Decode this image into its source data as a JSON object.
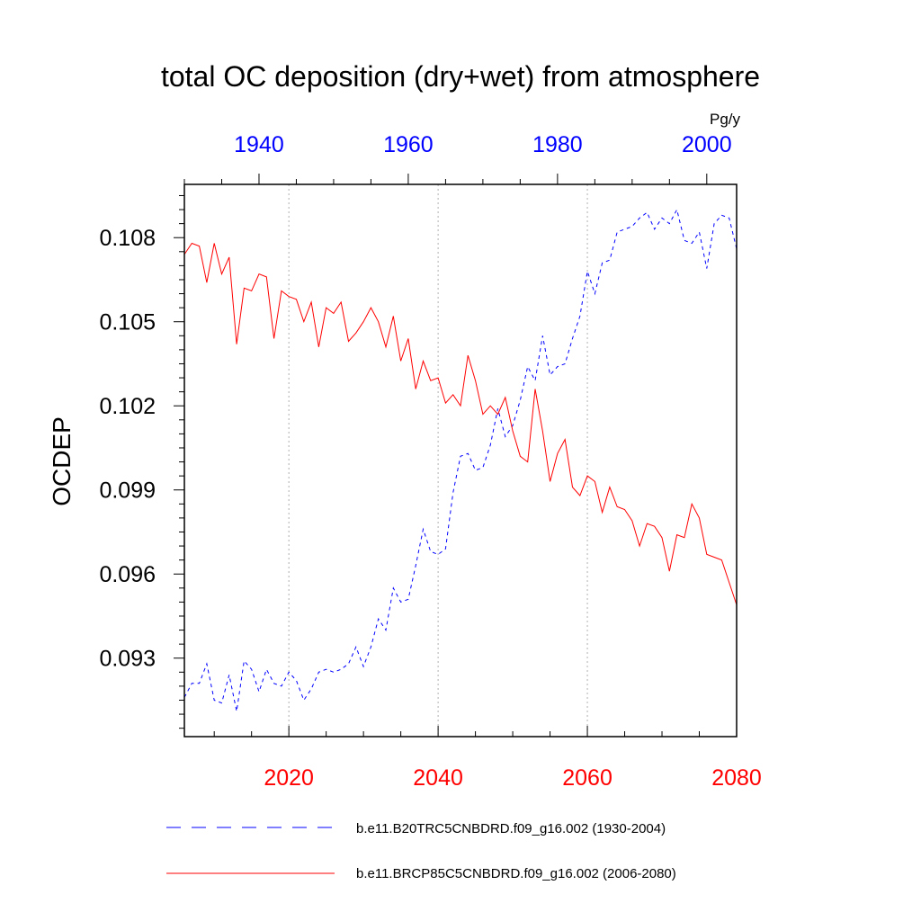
{
  "chart_data": {
    "type": "line",
    "title": "total OC deposition (dry+wet) from atmosphere",
    "ylabel": "OCDEP",
    "units": "Pg/y",
    "ylim": [
      0.0902,
      0.1099
    ],
    "yticks": [
      0.093,
      0.096,
      0.099,
      0.102,
      0.105,
      0.108
    ],
    "ytick_labels": [
      "0.093",
      "0.096",
      "0.099",
      "0.102",
      "0.105",
      "0.108"
    ],
    "x_bottom": {
      "range": [
        2006,
        2080
      ],
      "ticks": [
        2020,
        2040,
        2060,
        2080
      ],
      "tick_labels": [
        "2020",
        "2040",
        "2060",
        "2080"
      ],
      "color": "#ff0000"
    },
    "x_top": {
      "range": [
        1930,
        2004
      ],
      "ticks": [
        1940,
        1960,
        1980,
        2000
      ],
      "tick_labels": [
        "1940",
        "1960",
        "1980",
        "2000"
      ],
      "color": "#0000ff"
    },
    "gridlines_x": [
      2020,
      2040,
      2060
    ],
    "series": [
      {
        "name": "b.e11.B20TRC5CNBDRD.f09_g16.002 (1930-2004)",
        "axis": "top",
        "color": "#0000ff",
        "dash": "dashed",
        "x_start": 1930,
        "values": [
          0.0916,
          0.0921,
          0.0921,
          0.0928,
          0.0915,
          0.0914,
          0.0924,
          0.0911,
          0.0929,
          0.0926,
          0.0918,
          0.0926,
          0.0921,
          0.092,
          0.0925,
          0.0922,
          0.0915,
          0.0919,
          0.0925,
          0.0926,
          0.0925,
          0.0926,
          0.0928,
          0.0934,
          0.0927,
          0.0934,
          0.0944,
          0.094,
          0.0955,
          0.095,
          0.0951,
          0.0963,
          0.0976,
          0.0968,
          0.0967,
          0.0969,
          0.0989,
          0.1002,
          0.1003,
          0.0997,
          0.0998,
          0.1006,
          0.1019,
          0.1009,
          0.1013,
          0.1022,
          0.1034,
          0.1029,
          0.1045,
          0.1031,
          0.1034,
          0.1035,
          0.1044,
          0.1052,
          0.1068,
          0.106,
          0.1071,
          0.1072,
          0.1082,
          0.1083,
          0.1084,
          0.1087,
          0.1089,
          0.1083,
          0.1087,
          0.1085,
          0.109,
          0.1079,
          0.1078,
          0.1082,
          0.1069,
          0.1085,
          0.1088,
          0.1087,
          0.1076
        ]
      },
      {
        "name": "b.e11.BRCP85C5CNBDRD.f09_g16.002 (2006-2080)",
        "axis": "bottom",
        "color": "#ff0000",
        "dash": "solid",
        "x_start": 2006,
        "values": [
          0.1074,
          0.1078,
          0.1077,
          0.1064,
          0.1078,
          0.1067,
          0.1073,
          0.1042,
          0.1062,
          0.1061,
          0.1067,
          0.1066,
          0.1044,
          0.1061,
          0.1059,
          0.1058,
          0.105,
          0.1057,
          0.1041,
          0.1055,
          0.1053,
          0.1057,
          0.1043,
          0.1046,
          0.105,
          0.1055,
          0.105,
          0.1041,
          0.1052,
          0.1036,
          0.1044,
          0.1026,
          0.1036,
          0.1029,
          0.103,
          0.1021,
          0.1024,
          0.102,
          0.1038,
          0.1029,
          0.1017,
          0.102,
          0.1017,
          0.1023,
          0.1011,
          0.1002,
          0.1,
          0.1026,
          0.1011,
          0.0993,
          0.1003,
          0.1008,
          0.0991,
          0.0988,
          0.0995,
          0.0993,
          0.0982,
          0.0991,
          0.0984,
          0.0983,
          0.0979,
          0.097,
          0.0978,
          0.0977,
          0.0973,
          0.0961,
          0.0974,
          0.0973,
          0.0985,
          0.098,
          0.0967,
          0.0966,
          0.0965,
          0.0957,
          0.0949
        ]
      }
    ]
  }
}
